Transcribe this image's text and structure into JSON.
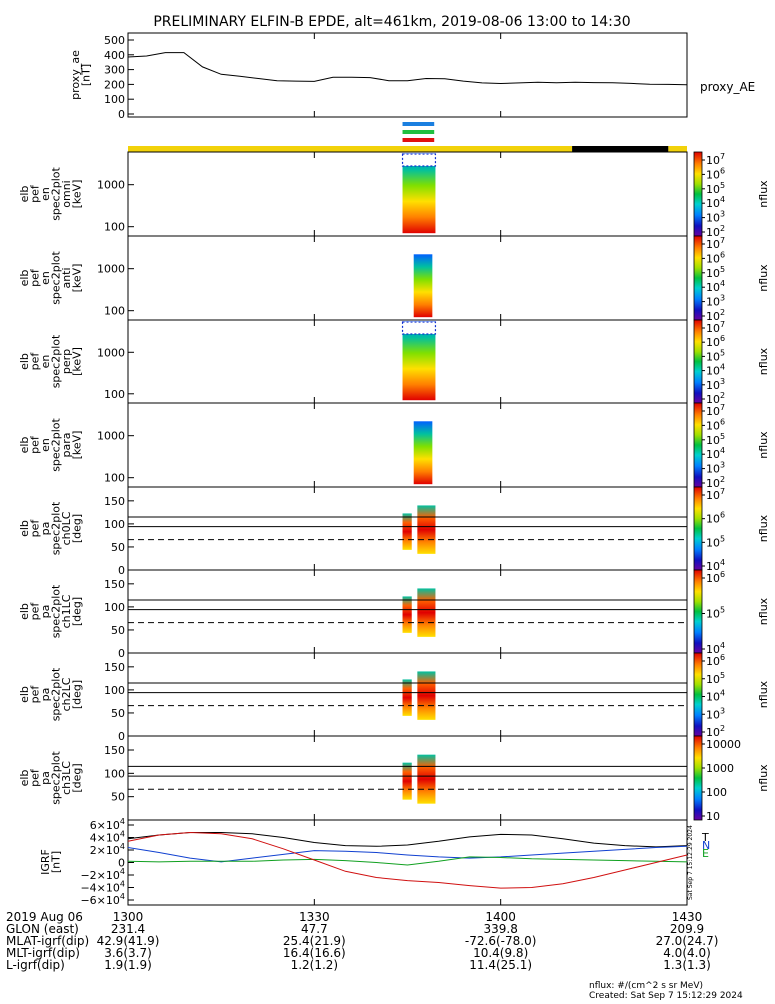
{
  "title": "PRELIMINARY ELFIN-B EPDE, alt=461km, 2019-08-06 13:00 to 14:30",
  "colors": {
    "black": "#000000",
    "orbit_bar": "#f2d20a",
    "bx": "#d01010",
    "by": "#1040d0",
    "bz": "#10a020",
    "dashed": "#000000"
  },
  "chart_data": [
    {
      "type": "line",
      "panel": "proxy_ae",
      "ylabel_lines": [
        "proxy_ae",
        "[nT]"
      ],
      "right_label": "proxy_AE",
      "yticks": [
        "500",
        "400",
        "300",
        "200",
        "100",
        "0"
      ],
      "ylim": [
        0,
        500
      ],
      "x": [
        1300,
        1303,
        1306,
        1309,
        1312,
        1315,
        1318,
        1321,
        1324,
        1327,
        1330,
        1333,
        1336,
        1339,
        1342,
        1345,
        1348,
        1351,
        1354,
        1357,
        1400,
        1403,
        1406,
        1409,
        1412,
        1415,
        1418,
        1421,
        1424,
        1427,
        1430
      ],
      "values": [
        385,
        392,
        415,
        415,
        318,
        268,
        255,
        240,
        225,
        222,
        220,
        248,
        248,
        246,
        225,
        224,
        240,
        238,
        222,
        210,
        206,
        210,
        214,
        211,
        214,
        212,
        211,
        207,
        201,
        200,
        198
      ]
    },
    {
      "type": "bar",
      "panel": "data-availability",
      "bars": [
        {
          "color": "#1a7fe0",
          "x0": 1344.2,
          "x1": 1349.3
        },
        {
          "color": "#20c040",
          "x0": 1344.2,
          "x1": 1349.3,
          "dashed": true
        },
        {
          "color": "#e01010",
          "x0": 1344.2,
          "x1": 1349.3,
          "dashed": true
        }
      ],
      "orbit_bar": [
        {
          "color": "#f2d20a",
          "x0": 1300,
          "x1": 1411.5
        },
        {
          "color": "#000000",
          "x0": 1411.5,
          "x1": 1427
        },
        {
          "color": "#f2d20a",
          "x0": 1427,
          "x1": 1430
        }
      ]
    },
    {
      "type": "heatmap",
      "panel": "omni",
      "ylabel_lines": [
        "elb",
        "pef",
        "en",
        "spec2plot",
        "omni",
        "[keV]"
      ],
      "ylog": true,
      "ylim": [
        60,
        6000
      ],
      "ytick_values": [
        1000,
        100
      ],
      "yticks": [
        "1000",
        "100"
      ],
      "zlabel": "nflux",
      "zticks": [
        "10^7",
        "10^6",
        "10^5",
        "10^4",
        "10^3",
        "10^2"
      ],
      "data_x": [
        1344.2,
        1349.5
      ]
    },
    {
      "type": "heatmap",
      "panel": "anti",
      "ylabel_lines": [
        "elb",
        "pef",
        "en",
        "spec2plot",
        "anti",
        "[keV]"
      ],
      "ylog": true,
      "ylim": [
        60,
        6000
      ],
      "ytick_values": [
        1000,
        100
      ],
      "yticks": [
        "1000",
        "100"
      ],
      "zlabel": "nflux",
      "zticks": [
        "10^7",
        "10^6",
        "10^5",
        "10^4",
        "10^3",
        "10^2"
      ],
      "data_x": [
        1346.0,
        1349.0
      ]
    },
    {
      "type": "heatmap",
      "panel": "perp",
      "ylabel_lines": [
        "elb",
        "pef",
        "en",
        "spec2plot",
        "perp",
        "[keV]"
      ],
      "ylog": true,
      "ylim": [
        60,
        6000
      ],
      "ytick_values": [
        1000,
        100
      ],
      "yticks": [
        "1000",
        "100"
      ],
      "zlabel": "nflux",
      "zticks": [
        "10^7",
        "10^6",
        "10^5",
        "10^4",
        "10^3",
        "10^2"
      ],
      "data_x": [
        1344.2,
        1349.5
      ]
    },
    {
      "type": "heatmap",
      "panel": "para",
      "ylabel_lines": [
        "elb",
        "pef",
        "en",
        "spec2plot",
        "para",
        "[keV]"
      ],
      "ylog": true,
      "ylim": [
        60,
        6000
      ],
      "ytick_values": [
        1000,
        100
      ],
      "yticks": [
        "1000",
        "100"
      ],
      "zlabel": "nflux",
      "zticks": [
        "10^7",
        "10^6",
        "10^5",
        "10^4",
        "10^3",
        "10^2"
      ],
      "data_x": [
        1346.0,
        1349.0
      ]
    },
    {
      "type": "heatmap",
      "panel": "ch0LC",
      "ylabel_lines": [
        "elb",
        "pef",
        "pa",
        "spec2plot",
        "ch0LC",
        "[deg]"
      ],
      "ylim": [
        0,
        180
      ],
      "yticks": [
        "150",
        "100",
        "50",
        "0"
      ],
      "ytick_values": [
        150,
        100,
        50,
        0
      ],
      "solid_lines": [
        115,
        94
      ],
      "dashed_line": 66,
      "zlabel": "nflux",
      "zticks": [
        "10^7",
        "10^6",
        "10^5",
        "10^4"
      ],
      "data_x": [
        1344.2,
        1349.5
      ]
    },
    {
      "type": "heatmap",
      "panel": "ch1LC",
      "ylabel_lines": [
        "elb",
        "pef",
        "pa",
        "spec2plot",
        "ch1LC",
        "[deg]"
      ],
      "ylim": [
        0,
        180
      ],
      "yticks": [
        "150",
        "100",
        "50",
        "0"
      ],
      "ytick_values": [
        150,
        100,
        50,
        0
      ],
      "solid_lines": [
        115,
        94
      ],
      "dashed_line": 66,
      "zlabel": "nflux",
      "zticks": [
        "10^6",
        "10^5",
        "10^4"
      ],
      "data_x": [
        1344.2,
        1349.5
      ]
    },
    {
      "type": "heatmap",
      "panel": "ch2LC",
      "ylabel_lines": [
        "elb",
        "pef",
        "pa",
        "spec2plot",
        "ch2LC",
        "[deg]"
      ],
      "ylim": [
        0,
        180
      ],
      "yticks": [
        "150",
        "100",
        "50",
        "0"
      ],
      "ytick_values": [
        150,
        100,
        50,
        0
      ],
      "solid_lines": [
        115,
        94
      ],
      "dashed_line": 66,
      "zlabel": "nflux",
      "zticks": [
        "10^6",
        "10^5",
        "10^4",
        "10^3",
        "10^2"
      ],
      "data_x": [
        1344.2,
        1349.5
      ]
    },
    {
      "type": "heatmap",
      "panel": "ch3LC",
      "ylabel_lines": [
        "elb",
        "pef",
        "pa",
        "spec2plot",
        "ch3LC",
        "[deg]"
      ],
      "ylim": [
        0,
        180
      ],
      "yticks": [
        "150",
        "100",
        "50"
      ],
      "ytick_values": [
        150,
        100,
        50
      ],
      "solid_lines": [
        115,
        94
      ],
      "dashed_line": 66,
      "zlabel": "nflux",
      "zticks": [
        "10000",
        "1000",
        "100",
        "10"
      ],
      "data_x": [
        1344.2,
        1349.5
      ]
    },
    {
      "type": "line",
      "panel": "igrf",
      "ylabel_lines": [
        "IGRF",
        "[nT]"
      ],
      "yticks": [
        "6×10^4",
        "4×10^4",
        "2×10^4",
        "0",
        "−2×10^4",
        "−4×10^4",
        "−6×10^4"
      ],
      "ytick_values": [
        60000,
        40000,
        20000,
        0,
        -20000,
        -40000,
        -60000
      ],
      "ylim": [
        -68000,
        68000
      ],
      "legend": [
        "T",
        "N",
        "E"
      ],
      "side_text": "Sat Sep 7 15:12:29 2024",
      "x": [
        1300,
        1305,
        1310,
        1315,
        1320,
        1325,
        1330,
        1335,
        1340,
        1345,
        1350,
        1355,
        1400,
        1405,
        1410,
        1415,
        1420,
        1425,
        1430
      ],
      "series": [
        {
          "name": "T",
          "color": "#000000",
          "values": [
            38000,
            44000,
            48000,
            48000,
            46000,
            40000,
            32000,
            27000,
            26000,
            28000,
            34000,
            41000,
            45000,
            44000,
            38000,
            31000,
            27000,
            25000,
            27000
          ]
        },
        {
          "name": "N",
          "color": "#1040d0",
          "values": [
            24000,
            16000,
            7000,
            1000,
            7000,
            13000,
            19000,
            18000,
            16000,
            12000,
            9000,
            7000,
            9000,
            12000,
            15000,
            18000,
            21000,
            24000,
            26000
          ]
        },
        {
          "name": "E",
          "color": "#10a020",
          "values": [
            2000,
            1000,
            2000,
            2000,
            2000,
            4000,
            5000,
            3000,
            0,
            -4000,
            2000,
            9000,
            8000,
            6000,
            5000,
            4000,
            3000,
            2000,
            1000
          ]
        },
        {
          "name": "",
          "color": "#d01010",
          "values": [
            34000,
            44000,
            48000,
            46000,
            38000,
            22000,
            4000,
            -14000,
            -24000,
            -29000,
            -32000,
            -37000,
            -41000,
            -40000,
            -34000,
            -24000,
            -12000,
            0,
            12000
          ]
        }
      ]
    }
  ],
  "xaxis": {
    "xlim": [
      1300,
      1430
    ],
    "ticks": [
      1300,
      1330,
      1400,
      1430
    ],
    "tick_positions_min": [
      0,
      30,
      60,
      90
    ]
  },
  "footer": {
    "rows": [
      {
        "label": "2019 Aug 06",
        "values": [
          "1300",
          "1330",
          "1400",
          "1430"
        ]
      },
      {
        "label": "GLON (east)",
        "values": [
          "231.4",
          "47.7",
          "339.8",
          "209.9"
        ]
      },
      {
        "label": "MLAT-igrf(dip)",
        "values": [
          "42.9(41.9)",
          "25.4(21.9)",
          "-72.6(-78.0)",
          "27.0(24.7)"
        ]
      },
      {
        "label": "MLT-igrf(dip)",
        "values": [
          "3.6(3.7)",
          "16.4(16.6)",
          "10.4(9.8)",
          "4.0(4.0)"
        ]
      },
      {
        "label": "L-igrf(dip)",
        "values": [
          "1.9(1.9)",
          "1.2(1.2)",
          "11.4(25.1)",
          "1.3(1.3)"
        ]
      }
    ],
    "note1": "nflux: #/(cm^2 s sr MeV)",
    "note2": "Created: Sat Sep  7 15:12:29 2024"
  }
}
